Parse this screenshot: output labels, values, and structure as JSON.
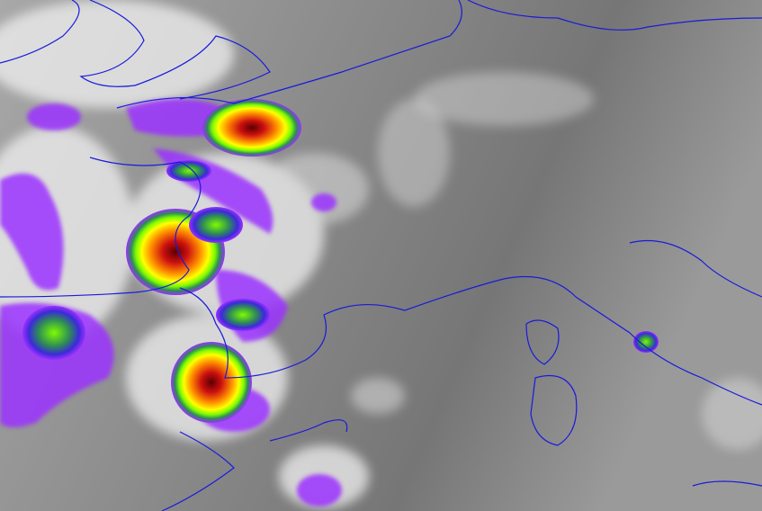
{
  "map": {
    "kind": "enhanced infrared satellite image",
    "colors": {
      "background_dark": "#6e6e6e",
      "background_light": "#b4b4b4",
      "cloud": "#f2f2f2",
      "coastline": "#1a1adc",
      "enhancement_scale": [
        "#9b30ff",
        "#3a2bd8",
        "#2e8b57",
        "#7cfc00",
        "#ffff00",
        "#ff8c00",
        "#cc1010",
        "#5a0000"
      ]
    },
    "storm_cells": [
      {
        "name": "north-cell",
        "intensity": "high"
      },
      {
        "name": "central-cell",
        "intensity": "very-high"
      },
      {
        "name": "southern-cell",
        "intensity": "very-high"
      },
      {
        "name": "eastern-small-cell",
        "intensity": "low"
      }
    ]
  }
}
